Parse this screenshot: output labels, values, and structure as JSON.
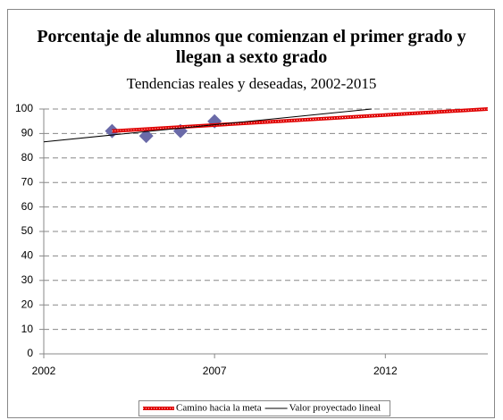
{
  "chart_data": {
    "type": "line",
    "title": "Porcentaje de alumnos que comienzan el primer grado y llegan a sexto grado",
    "subtitle": "Tendencias reales y deseadas, 2002-2015",
    "xlim": [
      2002,
      2015
    ],
    "xticks": [
      2002,
      2007,
      2012
    ],
    "ylim": [
      0,
      100
    ],
    "yticks": [
      0,
      10,
      20,
      30,
      40,
      50,
      60,
      70,
      80,
      90,
      100
    ],
    "grid": true,
    "legend": "bottom",
    "series": [
      {
        "style": "markers",
        "color": "#6a6aa8",
        "x": [
          2004,
          2005,
          2006,
          2007
        ],
        "values": [
          91,
          89,
          91,
          95
        ]
      },
      {
        "name": "Camino hacia la meta",
        "style": "line",
        "color": "#e00000",
        "x": [
          2004,
          2015
        ],
        "values": [
          91,
          100
        ]
      },
      {
        "name": "Valor proyectado lineal",
        "style": "line",
        "color": "#000000",
        "x": [
          2002,
          2011.6
        ],
        "values": [
          86.6,
          100
        ]
      }
    ]
  }
}
